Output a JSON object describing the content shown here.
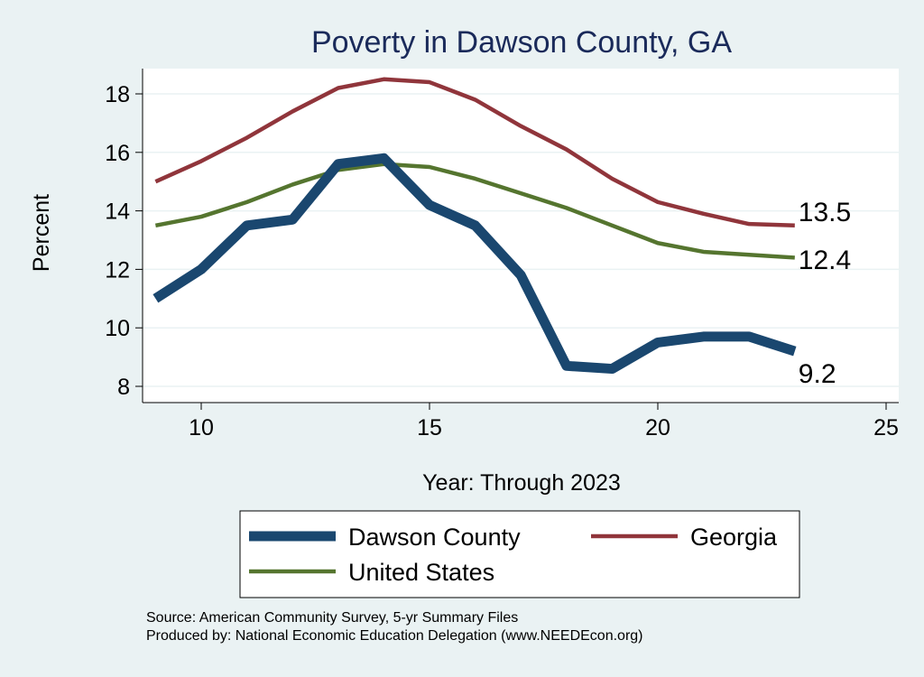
{
  "chart_data": {
    "type": "line",
    "title": "Poverty in Dawson County, GA",
    "xlabel": "Year: Through 2023",
    "ylabel": "Percent",
    "xlim": [
      8.7,
      25.3
    ],
    "ylim": [
      7.8,
      19.0
    ],
    "xticks": [
      10,
      15,
      20,
      25
    ],
    "yticks": [
      8,
      10,
      12,
      14,
      16,
      18
    ],
    "grid": true,
    "legend_placement": "bottom",
    "x": [
      9,
      10,
      11,
      12,
      13,
      14,
      15,
      16,
      17,
      18,
      19,
      20,
      21,
      22,
      23
    ],
    "series": [
      {
        "name": "Dawson County",
        "color": "#1a476f",
        "values": [
          11.0,
          12.0,
          13.5,
          13.7,
          15.6,
          15.8,
          14.2,
          13.5,
          11.8,
          8.7,
          8.6,
          9.5,
          9.7,
          9.7,
          9.2
        ],
        "end_label": "9.2"
      },
      {
        "name": "Georgia",
        "color": "#90353b",
        "values": [
          15.0,
          15.7,
          16.5,
          17.4,
          18.2,
          18.5,
          18.4,
          17.8,
          16.9,
          16.1,
          15.1,
          14.3,
          13.9,
          13.55,
          13.5
        ],
        "end_label": "13.5"
      },
      {
        "name": "United States",
        "color": "#55752f",
        "values": [
          13.5,
          13.8,
          14.3,
          14.9,
          15.4,
          15.6,
          15.5,
          15.1,
          14.6,
          14.1,
          13.5,
          12.9,
          12.6,
          12.5,
          12.4
        ],
        "end_label": "12.4"
      }
    ]
  },
  "notes": [
    "Source: American Community Survey, 5-yr Summary Files",
    "Produced by: National Economic Education Delegation (www.NEEDEcon.org)"
  ]
}
